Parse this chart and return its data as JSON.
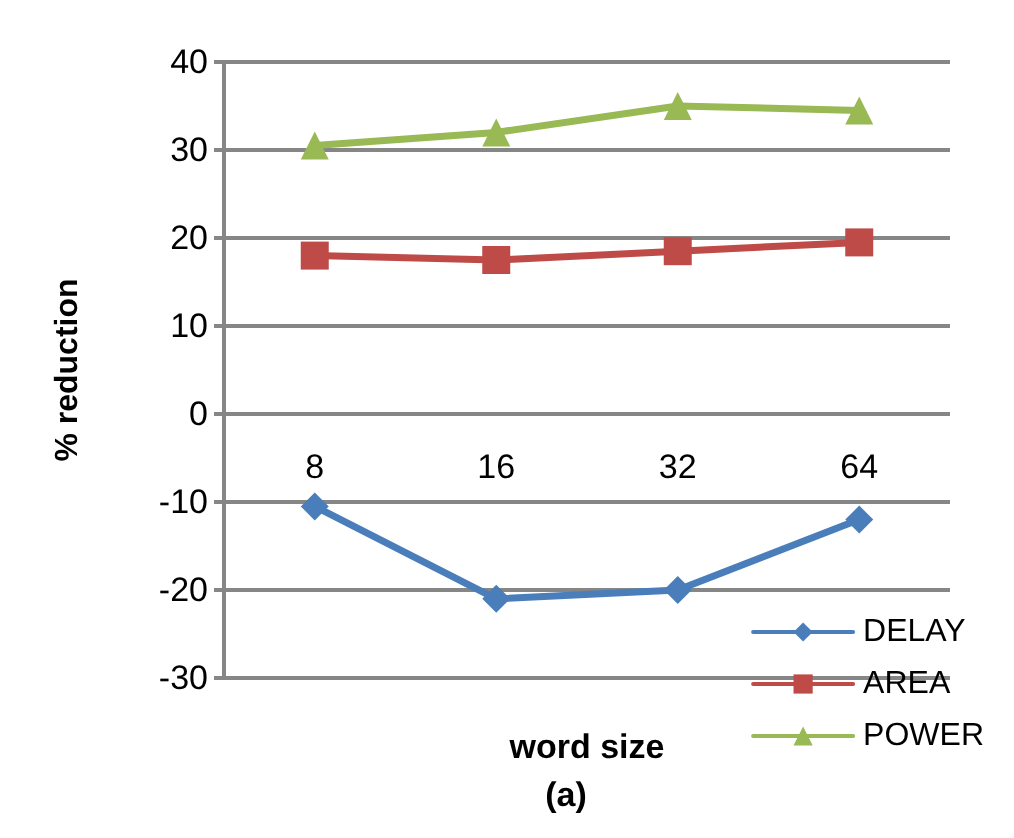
{
  "chart_data": {
    "type": "line",
    "title": "(a)",
    "xlabel": "word size",
    "ylabel": "% reduction",
    "categories": [
      "8",
      "16",
      "32",
      "64"
    ],
    "series": [
      {
        "name": "DELAY",
        "color": "#4a7ebb",
        "marker": "diamond",
        "values": [
          -10.5,
          -21,
          -20,
          -12
        ]
      },
      {
        "name": "AREA",
        "color": "#be4b48",
        "marker": "square",
        "values": [
          18,
          17.5,
          18.5,
          19.5
        ]
      },
      {
        "name": "POWER",
        "color": "#98b954",
        "marker": "triangle",
        "values": [
          30.5,
          32,
          35,
          34.5
        ]
      }
    ],
    "ylim": [
      -30,
      40
    ],
    "yticks": [
      -30,
      -20,
      -10,
      0,
      10,
      20,
      30,
      40
    ],
    "grid": "y",
    "legend": "bottom right"
  }
}
